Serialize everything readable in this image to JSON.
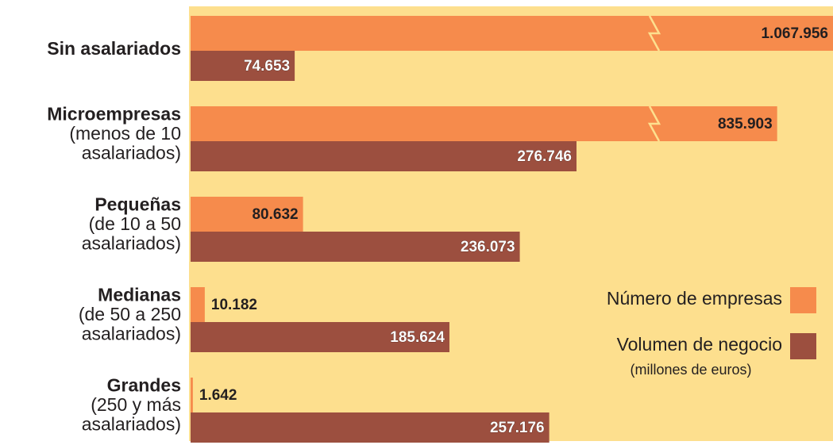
{
  "chart_data": {
    "type": "bar",
    "orientation": "horizontal",
    "broken_bars": true,
    "background": "#fddf8e",
    "categories": [
      [
        "Sin asalariados"
      ],
      [
        "Microempresas",
        "(menos de 10",
        "asalariados)"
      ],
      [
        "Pequeñas",
        "(de 10 a 50",
        "asalariados)"
      ],
      [
        "Medianas",
        "(de 50 a 250",
        "asalariados)"
      ],
      [
        "Grandes",
        "(250 y más",
        "asalariados)"
      ]
    ],
    "series": [
      {
        "name": "Número de empresas",
        "color": "#f68b4c",
        "values": [
          1067956,
          835903,
          80632,
          10182,
          1642
        ],
        "value_labels": [
          "1.067.956",
          "835.903",
          "80.632",
          "10.182",
          "1.642"
        ]
      },
      {
        "name": "Volumen de negocio",
        "note": "(millones de euros)",
        "color": "#9c4f3f",
        "values": [
          74653,
          276746,
          236073,
          185624,
          257176
        ],
        "value_labels": [
          "74.653",
          "276.746",
          "236.073",
          "185.624",
          "257.176"
        ]
      }
    ]
  }
}
